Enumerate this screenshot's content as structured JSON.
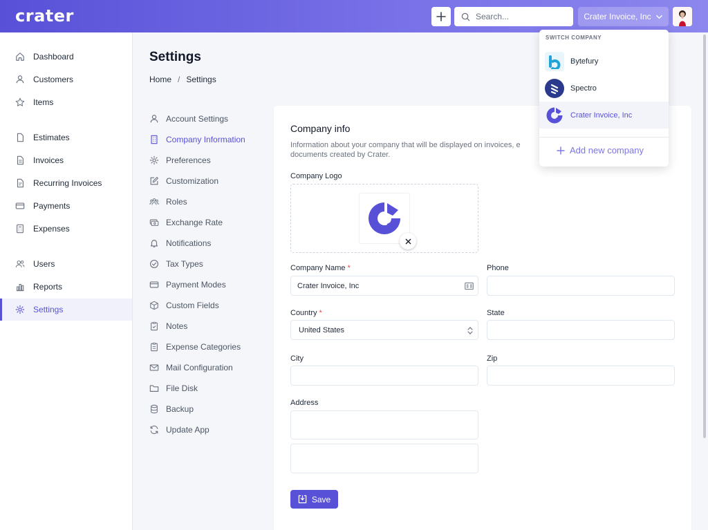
{
  "header": {
    "logo": "crater",
    "search_placeholder": "Search...",
    "company_selected": "Crater Invoice, Inc"
  },
  "sidebar": {
    "items": [
      {
        "label": "Dashboard",
        "icon": "home-icon"
      },
      {
        "label": "Customers",
        "icon": "user-icon"
      },
      {
        "label": "Items",
        "icon": "star-icon"
      },
      {
        "label": "Estimates",
        "icon": "document-icon"
      },
      {
        "label": "Invoices",
        "icon": "document-text-icon"
      },
      {
        "label": "Recurring Invoices",
        "icon": "document-duplicate-icon"
      },
      {
        "label": "Payments",
        "icon": "credit-card-icon"
      },
      {
        "label": "Expenses",
        "icon": "calculator-icon"
      },
      {
        "label": "Users",
        "icon": "users-icon"
      },
      {
        "label": "Reports",
        "icon": "chart-bar-icon"
      },
      {
        "label": "Settings",
        "icon": "cog-icon"
      }
    ],
    "active": "Settings"
  },
  "page": {
    "title": "Settings",
    "breadcrumb": [
      "Home",
      "Settings"
    ]
  },
  "settings_menu": [
    "Account Settings",
    "Company Information",
    "Preferences",
    "Customization",
    "Roles",
    "Exchange Rate",
    "Notifications",
    "Tax Types",
    "Payment Modes",
    "Custom Fields",
    "Notes",
    "Expense Categories",
    "Mail Configuration",
    "File Disk",
    "Backup",
    "Update App"
  ],
  "form": {
    "title": "Company info",
    "description": "Information about your company that will be displayed on invoices, e documents created by Crater.",
    "logo_label": "Company Logo",
    "company_name_label": "Company Name",
    "company_name_value": "Crater Invoice, Inc",
    "phone_label": "Phone",
    "country_label": "Country",
    "country_value": "United States",
    "state_label": "State",
    "city_label": "City",
    "zip_label": "Zip",
    "address_label": "Address",
    "required_mark": "*",
    "save_label": "Save"
  },
  "company_switcher": {
    "title": "SWITCH COMPANY",
    "companies": [
      {
        "name": "Bytefury",
        "color": "#20a4d8"
      },
      {
        "name": "Spectro",
        "color": "#2b3a8c"
      },
      {
        "name": "Crater Invoice, Inc",
        "color": "#5851d8"
      }
    ],
    "add_label": "Add new company"
  },
  "colors": {
    "primary": "#5851d8",
    "required": "#ef4444"
  }
}
